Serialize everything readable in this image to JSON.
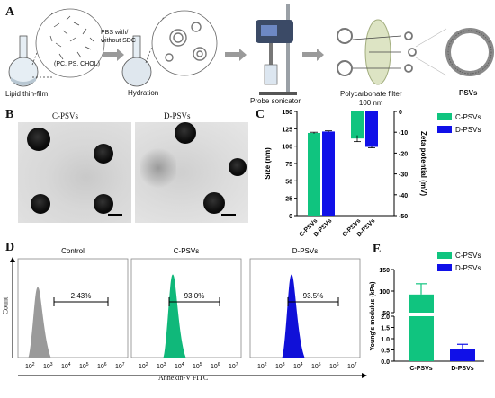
{
  "panels": {
    "A": {
      "letter": "A",
      "steps": {
        "thin_film": "Lipid thin-film",
        "lipids": "(PC, PS, CHOL)",
        "buffer": "PBS with/\nwithout SDC",
        "hydration": "Hydration",
        "sonicator": "Probe sonicator",
        "filter": "Polycarbonate filter\n100 nm",
        "product": "PSVs"
      }
    },
    "B": {
      "letter": "B",
      "left_title": "C-PSVs",
      "right_title": "D-PSVs"
    },
    "C": {
      "letter": "C"
    },
    "D": {
      "letter": "D",
      "ylabel": "Count",
      "xlabel": "Annexin-V FITC",
      "plots": [
        {
          "title": "Control",
          "gate": "2.43%",
          "color": "#9a9a9a"
        },
        {
          "title": "C-PSVs",
          "gate": "93.0%",
          "color": "#10b87a"
        },
        {
          "title": "D-PSVs",
          "gate": "93.5%",
          "color": "#1010d8"
        }
      ],
      "ticks": [
        "10",
        "10",
        "10",
        "10",
        "10",
        "10"
      ],
      "tick_exps": [
        "2",
        "3",
        "4",
        "5",
        "6",
        "7"
      ]
    },
    "E": {
      "letter": "E"
    }
  },
  "chart_data": [
    {
      "type": "bar",
      "panel": "C",
      "categories": [
        "C-PSVs",
        "D-PSVs"
      ],
      "series": [
        {
          "name": "C-PSVs",
          "values": [
            119,
            null
          ],
          "error": [
            1,
            null
          ],
          "axis": "Size (nm)"
        },
        {
          "name": "D-PSVs",
          "values": [
            null,
            121
          ],
          "error": [
            null,
            1
          ],
          "axis": "Size (nm)"
        },
        {
          "name": "C-PSVs",
          "values": [
            -13,
            null
          ],
          "error": [
            1.5,
            null
          ],
          "axis": "Zeta potential (mV)"
        },
        {
          "name": "D-PSVs",
          "values": [
            null,
            -17
          ],
          "error": [
            null,
            0.5
          ],
          "axis": "Zeta potential (mV)"
        }
      ],
      "ylabel": "Size (nm)",
      "ylim": [
        0,
        150
      ],
      "yticks": [
        0,
        25,
        50,
        75,
        100,
        125,
        150
      ],
      "y2label": "Zeta potential (mV)",
      "y2lim": [
        -50,
        0
      ],
      "y2ticks": [
        0,
        -10,
        -20,
        -30,
        -40,
        -50
      ],
      "legend": [
        "C-PSVs",
        "D-PSVs"
      ],
      "legend_position": "top-right",
      "colors": {
        "C-PSVs": "#10c47f",
        "D-PSVs": "#1010e8"
      }
    },
    {
      "type": "bar",
      "panel": "E",
      "categories": [
        "C-PSVs",
        "D-PSVs"
      ],
      "values": [
        92,
        0.55
      ],
      "error": [
        25,
        0.2
      ],
      "ylabel": "Young's modulus (kPa)",
      "axis_break": true,
      "lower_ticks": [
        "0.0",
        "0.5",
        "1.0",
        "1.5",
        "2.0"
      ],
      "upper_ticks": [
        "50",
        "100",
        "150"
      ],
      "legend": [
        "C-PSVs",
        "D-PSVs"
      ],
      "legend_position": "top-right",
      "colors": {
        "C-PSVs": "#10c47f",
        "D-PSVs": "#1010e8"
      }
    }
  ]
}
